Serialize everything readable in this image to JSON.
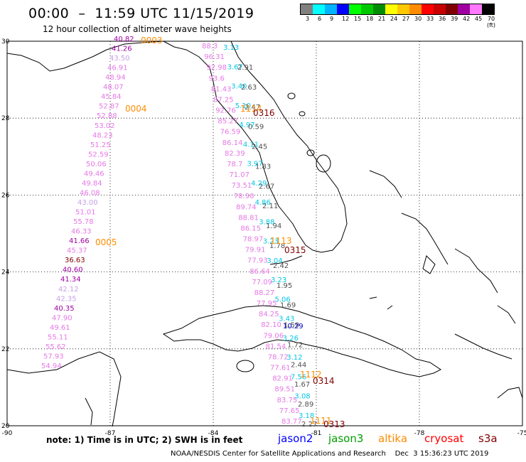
{
  "header": {
    "title": "00:00  –  11:59 UTC 11/15/2019",
    "subtitle": "12 hour collection of altimeter wave heights"
  },
  "legend": {
    "colors": [
      "#808080",
      "#00ffff",
      "#00b4ff",
      "#0000ff",
      "#00ff00",
      "#00c800",
      "#008c00",
      "#ffff00",
      "#ffc800",
      "#ff8c00",
      "#ff0000",
      "#c80000",
      "#800000",
      "#a000a0",
      "#ff78ff",
      "#000000"
    ],
    "labels": [
      "3",
      "6",
      "9",
      "12",
      "15",
      "18",
      "21",
      "24",
      "27",
      "30",
      "33",
      "36",
      "39",
      "42",
      "45",
      "70 (ft)"
    ]
  },
  "axes": {
    "x_labels": [
      "-90",
      "-87",
      "-84",
      "-81",
      "-78",
      "-75"
    ],
    "y_labels": [
      "30",
      "28",
      "26",
      "24",
      "22",
      "20"
    ]
  },
  "tracks": [
    {
      "color": "#ff8c00",
      "label": "0003",
      "data": [
        "0003"
      ]
    },
    {
      "color": "#a000a0",
      "values": [
        "40.82",
        "41.26"
      ]
    },
    {
      "color": "#c8a0e6",
      "values": [
        "43.50"
      ]
    },
    {
      "color": "#e678e6",
      "values": [
        "46.91",
        "48.94",
        "48.07",
        "45.84",
        "52.87",
        "52.88",
        "53.02",
        "48.23",
        "51.25",
        "52.59",
        "50.06",
        "49.46",
        "49.84",
        "46.08"
      ]
    },
    {
      "color": "#ff8c00",
      "label": "0004"
    },
    {
      "color": "#c8a0e6",
      "values": [
        "43.00"
      ]
    },
    {
      "color": "#e678e6",
      "values": [
        "51.01",
        "55.78",
        "46.33"
      ]
    },
    {
      "color": "#a000a0",
      "values": [
        "41.66"
      ]
    },
    {
      "color": "#ff8c00",
      "label": "0005"
    },
    {
      "color": "#e678e6",
      "values": [
        "45.37"
      ]
    },
    {
      "color": "#800000",
      "values": [
        "36.63"
      ]
    },
    {
      "color": "#a000a0",
      "values": [
        "40.60",
        "41.34"
      ]
    },
    {
      "color": "#c8a0e6",
      "values": [
        "42.12",
        "42.35"
      ]
    },
    {
      "color": "#a000a0",
      "values": [
        "40.35"
      ]
    },
    {
      "color": "#e678e6",
      "values": [
        "47.90",
        "49.61",
        "55.11",
        "55.62",
        "57.93",
        "54.94"
      ]
    }
  ],
  "labels": {
    "west": [
      {
        "t": "40.82",
        "c": "#a000a0"
      },
      {
        "t": "41.26",
        "c": "#a000a0"
      },
      {
        "t": "43.50",
        "c": "#c8a0e6"
      },
      {
        "t": "46.91",
        "c": "#e678e6"
      },
      {
        "t": "48.94",
        "c": "#e678e6"
      },
      {
        "t": "48.07",
        "c": "#e678e6"
      },
      {
        "t": "45.84",
        "c": "#e678e6"
      },
      {
        "t": "52.87",
        "c": "#e678e6"
      },
      {
        "t": "52.88",
        "c": "#e678e6"
      },
      {
        "t": "53.02",
        "c": "#e678e6"
      },
      {
        "t": "48.23",
        "c": "#e678e6"
      },
      {
        "t": "51.25",
        "c": "#e678e6"
      },
      {
        "t": "52.59",
        "c": "#e678e6"
      },
      {
        "t": "50.06",
        "c": "#e678e6"
      },
      {
        "t": "49.46",
        "c": "#e678e6"
      },
      {
        "t": "49.84",
        "c": "#e678e6"
      },
      {
        "t": "46.08",
        "c": "#e678e6"
      },
      {
        "t": "43.00",
        "c": "#c8a0e6"
      },
      {
        "t": "51.01",
        "c": "#e678e6"
      },
      {
        "t": "55.78",
        "c": "#e678e6"
      },
      {
        "t": "46.33",
        "c": "#e678e6"
      },
      {
        "t": "41.66",
        "c": "#a000a0"
      },
      {
        "t": "45.37",
        "c": "#e678e6"
      },
      {
        "t": "36.63",
        "c": "#800000"
      },
      {
        "t": "40.60",
        "c": "#a000a0"
      },
      {
        "t": "41.34",
        "c": "#a000a0"
      },
      {
        "t": "42.12",
        "c": "#c8a0e6"
      },
      {
        "t": "42.35",
        "c": "#c8a0e6"
      },
      {
        "t": "40.35",
        "c": "#a000a0"
      },
      {
        "t": "47.90",
        "c": "#e678e6"
      },
      {
        "t": "49.61",
        "c": "#e678e6"
      },
      {
        "t": "55.11",
        "c": "#e678e6"
      },
      {
        "t": "55.62",
        "c": "#e678e6"
      },
      {
        "t": "57.93",
        "c": "#e678e6"
      },
      {
        "t": "54.94",
        "c": "#e678e6"
      }
    ],
    "west_times": [
      {
        "t": "0003",
        "c": "#ff8c00"
      },
      {
        "t": "0004",
        "c": "#ff8c00"
      },
      {
        "t": "0005",
        "c": "#ff8c00"
      }
    ],
    "east_pink": [
      "88.3",
      "96.31",
      "92.98",
      "93.6",
      "81.43",
      "87.25",
      "92.76",
      "85.27",
      "76.59",
      "86.14",
      "82.39",
      "78.7",
      "71.07",
      "73.51",
      "78.90",
      "89.74",
      "88.81",
      "86.15",
      "78.97",
      "79.91",
      "77.93",
      "86.64",
      "77.09",
      "88.27",
      "77.95",
      "84.25",
      "82.10",
      "79.06",
      "81.54",
      "78.72",
      "77.61",
      "82.91",
      "89.51",
      "83.75",
      "77.65",
      "83.77"
    ],
    "east_cyan": [
      "3.13",
      "3.67",
      "3.40",
      "5.10",
      "4.97",
      "4.11",
      "3.97",
      "4.29",
      "4.86",
      "3.88",
      "3.23",
      "3.04",
      "3.23",
      "5.06",
      "3.43",
      "3.26",
      "3.12",
      "7.56",
      "3.08",
      "3.18"
    ],
    "east_gray": [
      "2.91",
      "2.63",
      "2.47",
      "0.59",
      "2.45",
      "1.83",
      "2.67",
      "2.11",
      "1.94",
      "1.78",
      "2.42",
      "1.95",
      "1.69",
      "1.59",
      "1.72",
      "2.44",
      "1.67",
      "2.89",
      "2.27"
    ],
    "east_blue": [
      "10.29"
    ],
    "east_times_orange": [
      "1114",
      "1113",
      "1112",
      "1111"
    ],
    "east_times_red": [
      "0316",
      "0315",
      "0314",
      "0313"
    ]
  },
  "footer": {
    "note": "note:  1) Time is in UTC;  2) SWH is in feet",
    "satellites": [
      {
        "name": "jason2",
        "color": "#0000ff"
      },
      {
        "name": "jason3",
        "color": "#00a000"
      },
      {
        "name": "altika",
        "color": "#ff8c00"
      },
      {
        "name": "cryosat",
        "color": "#ff0000"
      },
      {
        "name": "s3a",
        "color": "#800000"
      }
    ],
    "credit": "NOAA/NESDIS Center for Satellite Applications and Research    Dec  3 15:36:23 UTC 2019"
  }
}
